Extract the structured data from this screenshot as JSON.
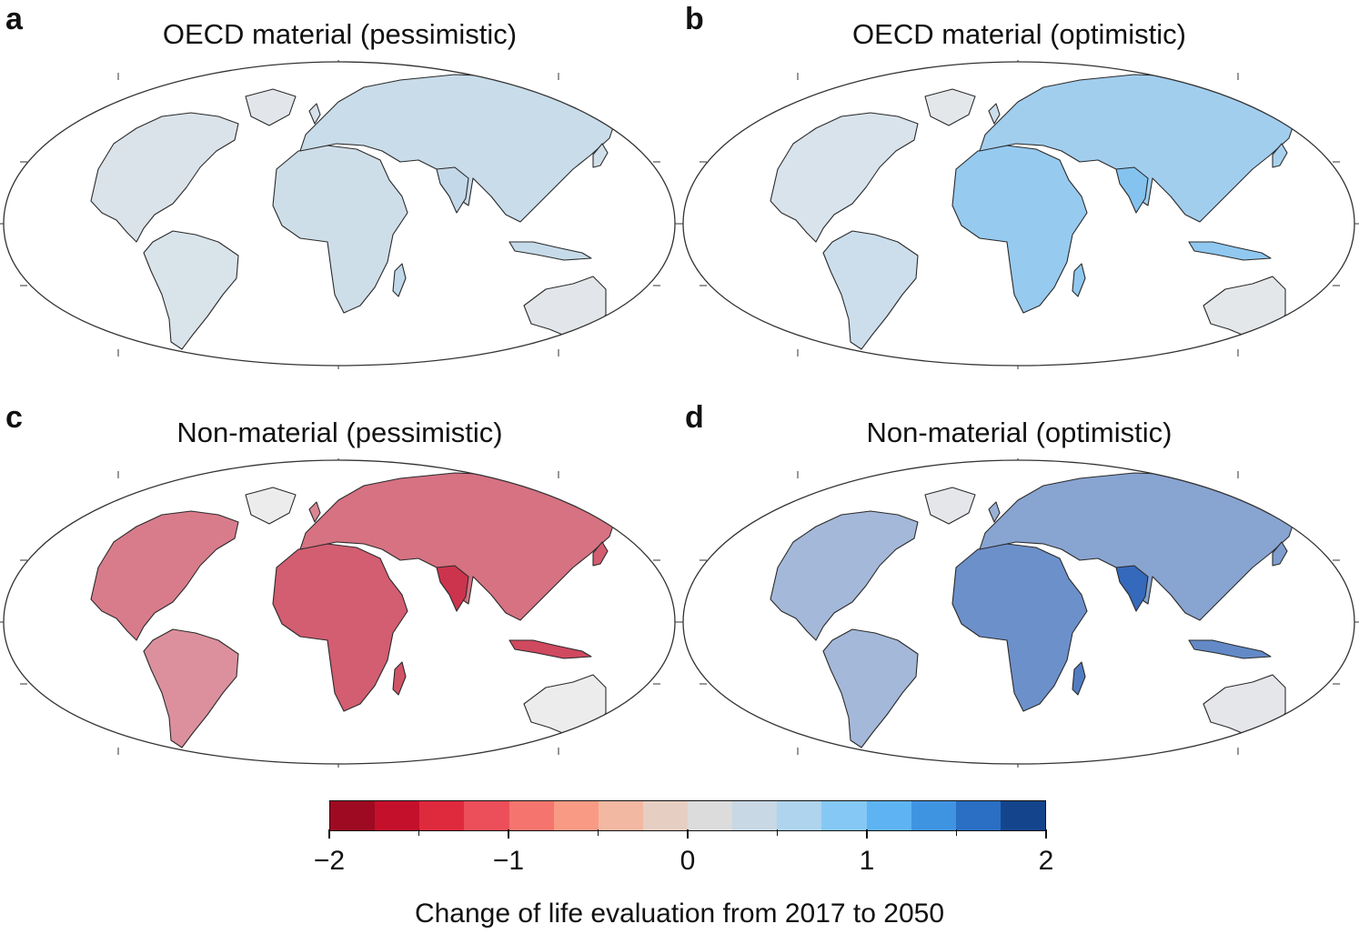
{
  "panels": [
    {
      "letter": "a",
      "title": "OECD material (pessimistic)",
      "tone": "pale-blue"
    },
    {
      "letter": "b",
      "title": "OECD material (optimistic)",
      "tone": "blue"
    },
    {
      "letter": "c",
      "title": "Non-material (pessimistic)",
      "tone": "red"
    },
    {
      "letter": "d",
      "title": "Non-material (optimistic)",
      "tone": "strong-blue"
    }
  ],
  "colorbar": {
    "title": "Change of life evaluation from 2017 to 2050",
    "ticks": [
      "−2",
      "−1",
      "0",
      "1",
      "2"
    ],
    "min": -2,
    "max": 2,
    "colors": [
      "#9e0a22",
      "#c5102c",
      "#df2a3e",
      "#ec4f5a",
      "#f5756e",
      "#f99a84",
      "#f2b8a2",
      "#e6cfc2",
      "#dcdcdc",
      "#c8d8e4",
      "#aed4ee",
      "#86c8f5",
      "#5eb4f2",
      "#3f94e2",
      "#2a6fc4",
      "#14458c"
    ]
  }
}
